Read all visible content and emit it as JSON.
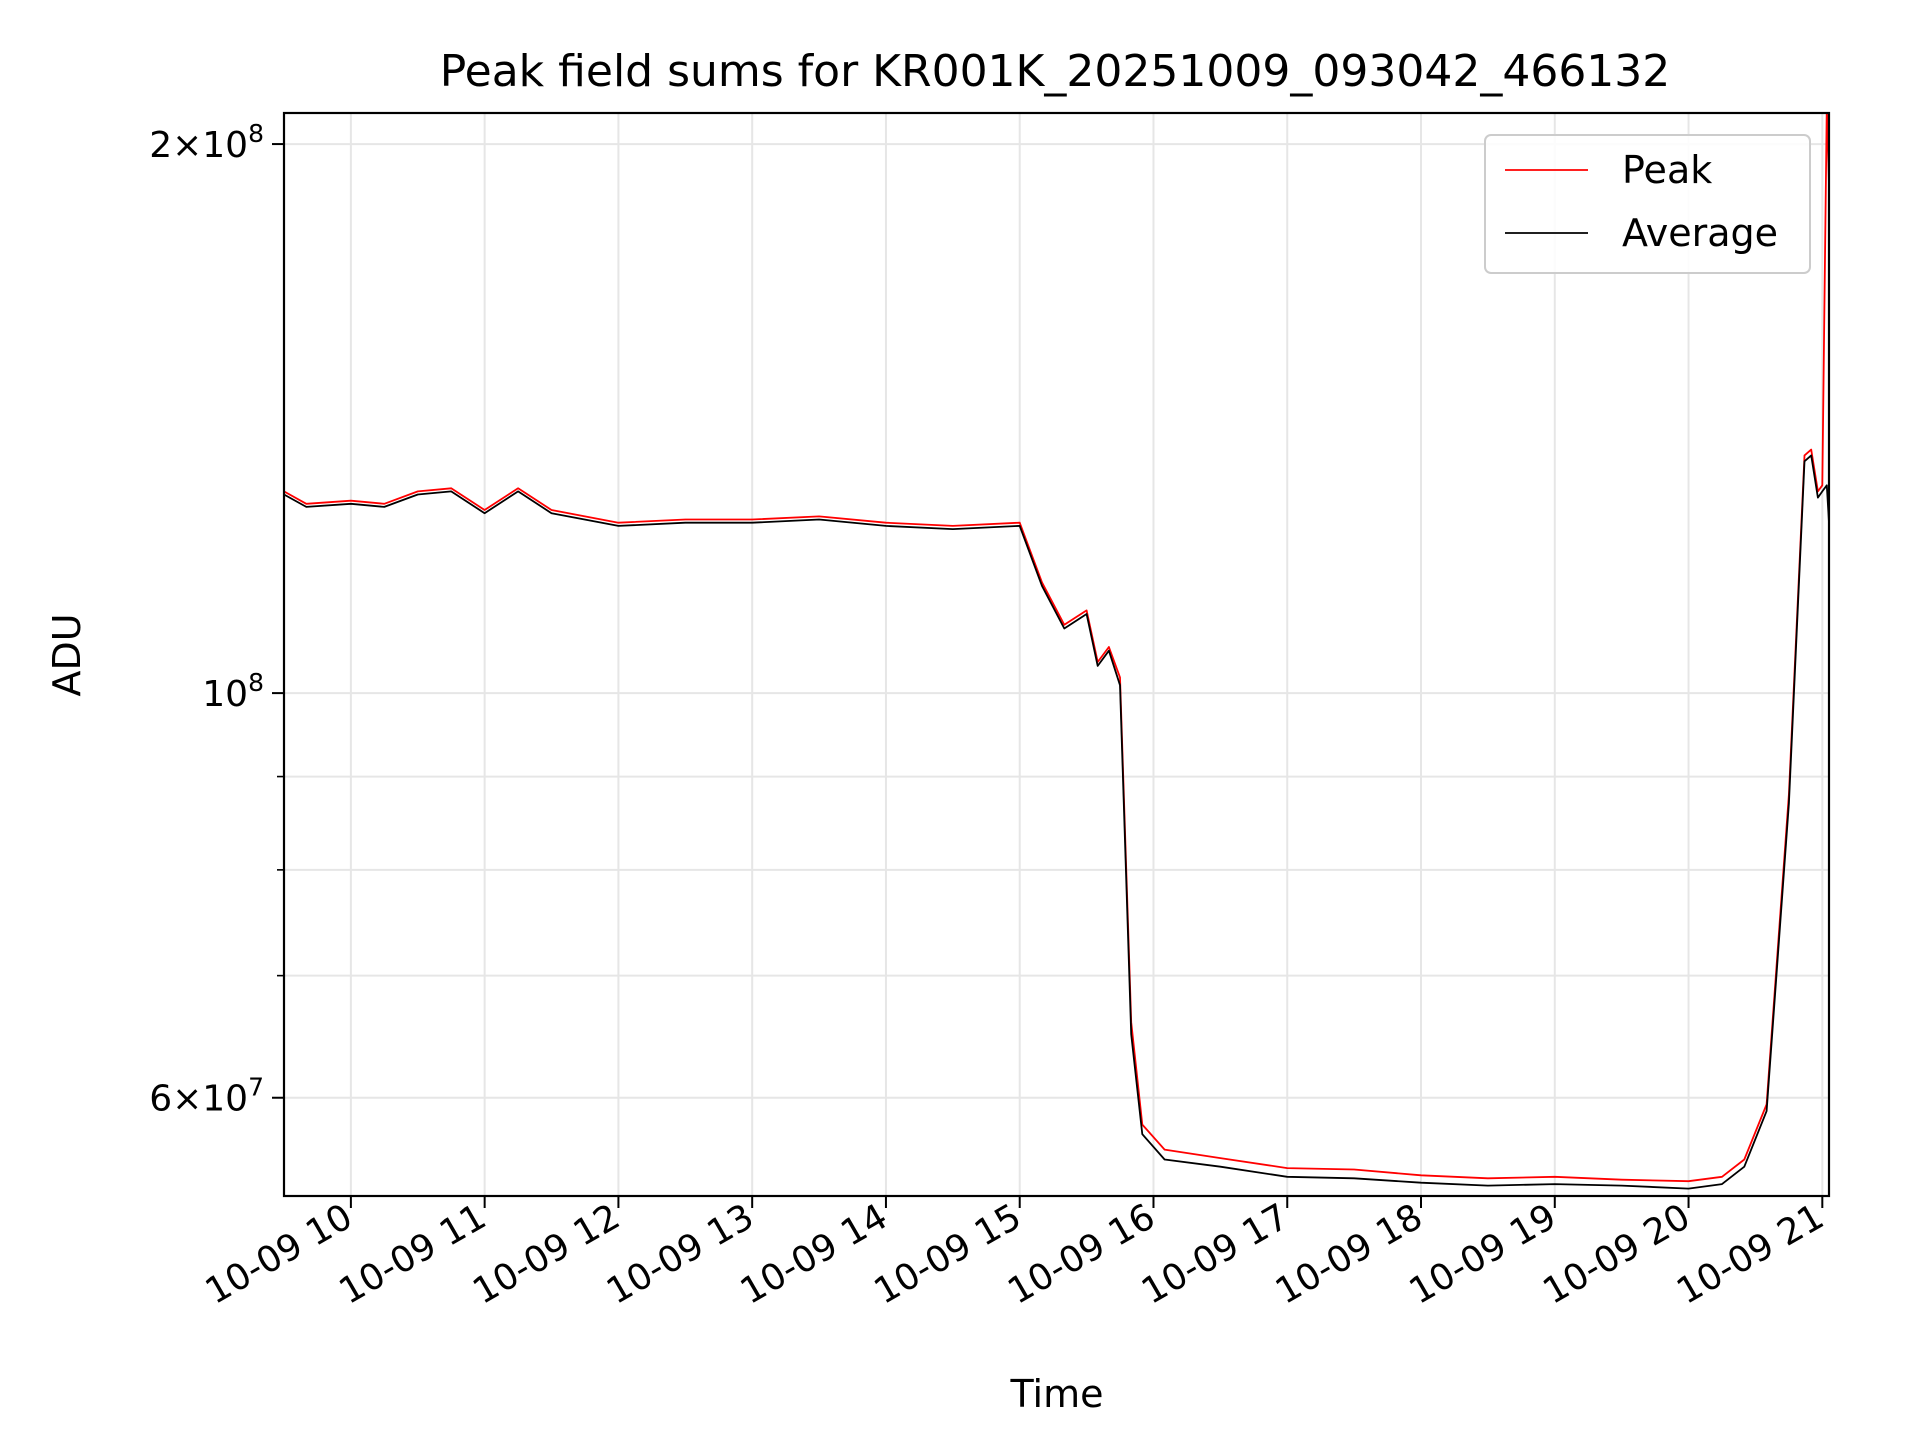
{
  "chart_data": {
    "type": "line",
    "title": "Peak field sums for KR001K_20251009_093042_466132",
    "xlabel": "Time",
    "ylabel": "ADU",
    "yscale": "log",
    "xlim": [
      "2025-10-09 09:30",
      "2025-10-09 21:03"
    ],
    "ylim": [
      53000000,
      208000000
    ],
    "grid": true,
    "legend_position": "top-right",
    "x_ticks": [
      "10-09 10",
      "10-09 11",
      "10-09 12",
      "10-09 13",
      "10-09 14",
      "10-09 15",
      "10-09 16",
      "10-09 17",
      "10-09 18",
      "10-09 19",
      "10-09 20",
      "10-09 21"
    ],
    "y_ticks_major": [
      {
        "value": 100000000,
        "base": "10",
        "exp": "8"
      },
      {
        "value": 200000000,
        "mant": "2",
        "base": "10",
        "exp": "8"
      },
      {
        "value": 60000000,
        "mant": "6",
        "base": "10",
        "exp": "7"
      }
    ],
    "y_ticks_minor": [
      70000000,
      80000000,
      90000000
    ],
    "series": [
      {
        "name": "Peak",
        "color": "#ff0000",
        "x": [
          "2025-10-09 09:30",
          "2025-10-09 09:40",
          "2025-10-09 10:00",
          "2025-10-09 10:15",
          "2025-10-09 10:30",
          "2025-10-09 10:45",
          "2025-10-09 11:00",
          "2025-10-09 11:15",
          "2025-10-09 11:30",
          "2025-10-09 12:00",
          "2025-10-09 12:30",
          "2025-10-09 13:00",
          "2025-10-09 13:30",
          "2025-10-09 14:00",
          "2025-10-09 14:30",
          "2025-10-09 15:00",
          "2025-10-09 15:10",
          "2025-10-09 15:20",
          "2025-10-09 15:30",
          "2025-10-09 15:35",
          "2025-10-09 15:40",
          "2025-10-09 15:45",
          "2025-10-09 15:50",
          "2025-10-09 15:55",
          "2025-10-09 16:05",
          "2025-10-09 16:30",
          "2025-10-09 17:00",
          "2025-10-09 17:30",
          "2025-10-09 18:00",
          "2025-10-09 18:30",
          "2025-10-09 19:00",
          "2025-10-09 19:30",
          "2025-10-09 20:00",
          "2025-10-09 20:15",
          "2025-10-09 20:25",
          "2025-10-09 20:35",
          "2025-10-09 20:45",
          "2025-10-09 20:52",
          "2025-10-09 20:55",
          "2025-10-09 20:58",
          "2025-10-09 21:00",
          "2025-10-09 21:02",
          "2025-10-09 21:03"
        ],
        "values": [
          129000000,
          127000000,
          127500000,
          127000000,
          129000000,
          129500000,
          126000000,
          129500000,
          126000000,
          124000000,
          124500000,
          124500000,
          125000000,
          124000000,
          123500000,
          124000000,
          115000000,
          109000000,
          111000000,
          104000000,
          106000000,
          102000000,
          66000000,
          58000000,
          56200000,
          55600000,
          54900000,
          54800000,
          54400000,
          54200000,
          54300000,
          54100000,
          54000000,
          54300000,
          55500000,
          59500000,
          88000000,
          135000000,
          136000000,
          129000000,
          130000000,
          210000000,
          190000000
        ]
      },
      {
        "name": "Average",
        "color": "#000000",
        "x": [
          "2025-10-09 09:30",
          "2025-10-09 09:40",
          "2025-10-09 10:00",
          "2025-10-09 10:15",
          "2025-10-09 10:30",
          "2025-10-09 10:45",
          "2025-10-09 11:00",
          "2025-10-09 11:15",
          "2025-10-09 11:30",
          "2025-10-09 12:00",
          "2025-10-09 12:30",
          "2025-10-09 13:00",
          "2025-10-09 13:30",
          "2025-10-09 14:00",
          "2025-10-09 14:30",
          "2025-10-09 15:00",
          "2025-10-09 15:10",
          "2025-10-09 15:20",
          "2025-10-09 15:30",
          "2025-10-09 15:35",
          "2025-10-09 15:40",
          "2025-10-09 15:45",
          "2025-10-09 15:50",
          "2025-10-09 15:55",
          "2025-10-09 16:05",
          "2025-10-09 16:30",
          "2025-10-09 17:00",
          "2025-10-09 17:30",
          "2025-10-09 18:00",
          "2025-10-09 18:30",
          "2025-10-09 19:00",
          "2025-10-09 19:30",
          "2025-10-09 20:00",
          "2025-10-09 20:15",
          "2025-10-09 20:25",
          "2025-10-09 20:35",
          "2025-10-09 20:45",
          "2025-10-09 20:52",
          "2025-10-09 20:55",
          "2025-10-09 20:58",
          "2025-10-09 21:00",
          "2025-10-09 21:02",
          "2025-10-09 21:03"
        ],
        "values": [
          128500000,
          126500000,
          127000000,
          126500000,
          128500000,
          129000000,
          125500000,
          129000000,
          125500000,
          123500000,
          124000000,
          124000000,
          124500000,
          123500000,
          123000000,
          123500000,
          114500000,
          108500000,
          110500000,
          103500000,
          105500000,
          101000000,
          65000000,
          57300000,
          55500000,
          55000000,
          54300000,
          54200000,
          53900000,
          53700000,
          53800000,
          53700000,
          53500000,
          53800000,
          55000000,
          59000000,
          87000000,
          134000000,
          135000000,
          128000000,
          129000000,
          130000000,
          124000000
        ]
      }
    ]
  }
}
